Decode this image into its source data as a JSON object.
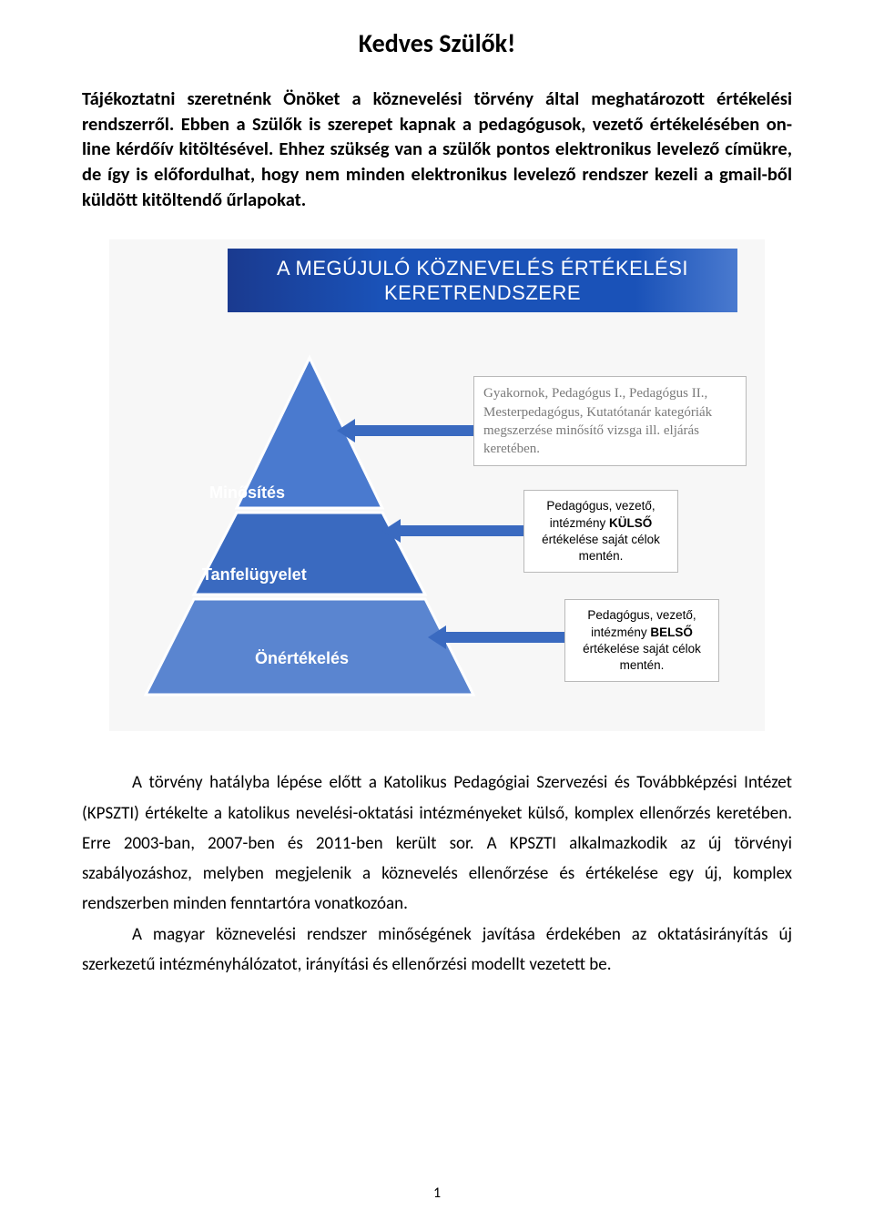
{
  "title": "Kedves Szülők!",
  "intro": "Tájékoztatni szeretnénk Önöket a köznevelési törvény által meghatározott értékelési rendszerről. Ebben a Szülők is szerepet kapnak a pedagógusok, vezető értékelésében on-line kérdőív kitöltésével. Ehhez szükség van a szülők pontos elektronikus levelező címükre, de így is előfordulhat, hogy nem minden elektronikus levelező rendszer kezeli a gmail-ből küldött kitöltendő űrlapokat.",
  "diagram": {
    "background": "#f7f7f7",
    "banner": {
      "line1": "A MEGÚJULÓ KÖZNEVELÉS ÉRTÉKELÉSI",
      "line2": "KERETRENDSZERE",
      "bg_start": "#1a3a8f",
      "bg_end": "#4a7acf",
      "text_color": "#ffffff"
    },
    "pyramid": {
      "levels": [
        {
          "label": "Minősítés",
          "fill": "#4a7acf"
        },
        {
          "label": "Tanfelügyelet",
          "fill": "#3a6ac0"
        },
        {
          "label": "Önértékelés",
          "fill": "#5a85d0"
        }
      ],
      "stroke": "#ffffff"
    },
    "arrows": {
      "fill": "#3a6ac0"
    },
    "callouts": [
      {
        "text_html": "Gyakornok, Pedagógus I., Pedagógus II., Mesterpedagógus, Kutatótanár kategóriák megszerzése minősítő vizsga ill. eljárás keretében.",
        "color": "#7a7a7a"
      },
      {
        "text_html": "Pedagógus, vezető, intézmény <b>KÜLSŐ</b> értékelése saját célok mentén.",
        "color": "#000000"
      },
      {
        "text_html": "Pedagógus, vezető, intézmény <b>BELSŐ</b> értékelése saját célok mentén.",
        "color": "#000000"
      }
    ]
  },
  "paragraphs": [
    "A törvény hatályba lépése előtt a Katolikus Pedagógiai Szervezési és Továbbképzési Intézet (KPSZTI) értékelte a katolikus nevelési-oktatási intézményeket külső, komplex ellenőrzés keretében. Erre 2003-ban, 2007-ben és 2011-ben került sor. A KPSZTI alkalmazkodik az új törvényi szabályozáshoz, melyben megjelenik a köznevelés ellenőrzése és értékelése egy új, komplex rendszerben minden fenntartóra vonatkozóan.",
    "A magyar köznevelési rendszer minőségének javítása érdekében az oktatásirányítás új szerkezetű intézményhálózatot, irányítási és ellenőrzési modellt vezetett be."
  ],
  "page_number": "1"
}
